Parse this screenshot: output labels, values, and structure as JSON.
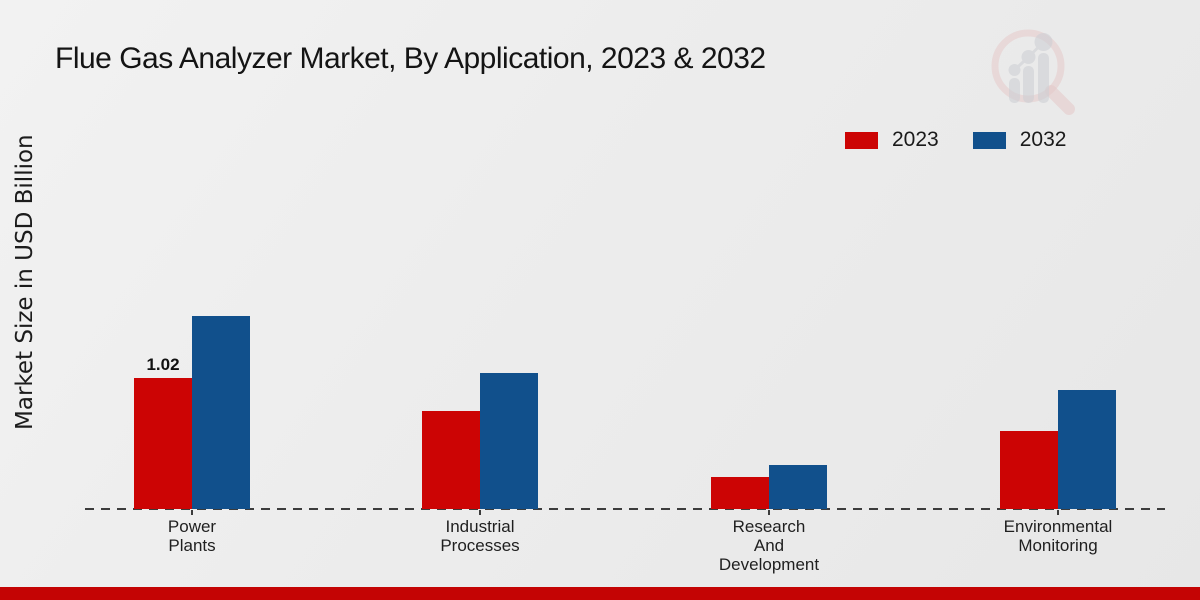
{
  "title": "Flue Gas Analyzer Market, By Application, 2023 & 2032",
  "y_axis_label": "Market Size in USD Billion",
  "colors": {
    "series_2023": "#cc0404",
    "series_2032": "#11508c",
    "footer_strip": "#c40404",
    "axis_line": "#3c3c3c"
  },
  "legend": {
    "position": "top-right",
    "items": [
      {
        "label": "2023",
        "color": "#cc0404"
      },
      {
        "label": "2032",
        "color": "#11508c"
      }
    ]
  },
  "chart_data": {
    "type": "bar",
    "title": "Flue Gas Analyzer Market, By Application, 2023 & 2032",
    "xlabel": "",
    "ylabel": "Market Size in USD Billion",
    "categories": [
      "Power Plants",
      "Industrial Processes",
      "Research And Development",
      "Environmental Monitoring"
    ],
    "series": [
      {
        "name": "2023",
        "color": "#cc0404",
        "values": [
          1.02,
          0.76,
          0.25,
          0.61
        ]
      },
      {
        "name": "2032",
        "color": "#11508c",
        "values": [
          1.5,
          1.06,
          0.34,
          0.93
        ]
      }
    ],
    "annotations": [
      {
        "category_index": 0,
        "series_index": 0,
        "text": "1.02"
      }
    ],
    "ylim": [
      0,
      1.75
    ],
    "grid": false,
    "axis_style": "dashed-baseline-only",
    "legend_position": "top-right"
  },
  "watermark": {
    "name": "magnifier-growth-chart-logo"
  }
}
